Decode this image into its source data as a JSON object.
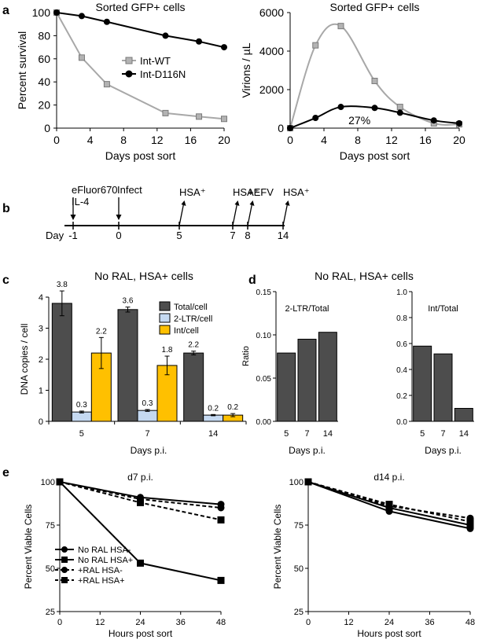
{
  "panel_letters": {
    "a": "a",
    "b": "b",
    "c": "c",
    "d": "d",
    "e": "e"
  },
  "chart_data": [
    {
      "id": "a-left",
      "type": "line",
      "title": "Sorted GFP+ cells",
      "xlabel": "Days post sort",
      "ylabel": "Percent survival",
      "xlim": [
        0,
        20
      ],
      "ylim": [
        0,
        100
      ],
      "xticks": [
        0,
        4,
        8,
        12,
        16,
        20
      ],
      "yticks": [
        0,
        20,
        40,
        60,
        80,
        100
      ],
      "series": [
        {
          "name": "Int-WT",
          "color": "#a8a8a8",
          "marker": "square",
          "x": [
            0,
            3,
            6,
            13,
            17,
            20
          ],
          "y": [
            100,
            61,
            38,
            13,
            10,
            8
          ]
        },
        {
          "name": "Int-D116N",
          "color": "#000000",
          "marker": "circle",
          "x": [
            0,
            3,
            6,
            13,
            17,
            20
          ],
          "y": [
            100,
            97,
            92,
            80,
            75,
            70
          ]
        }
      ]
    },
    {
      "id": "a-right",
      "type": "line",
      "title": "Sorted GFP+ cells",
      "xlabel": "Days post sort",
      "ylabel": "Virions / µL",
      "xlim": [
        0,
        20
      ],
      "ylim": [
        0,
        6000
      ],
      "xticks": [
        0,
        4,
        8,
        12,
        16,
        20
      ],
      "yticks": [
        0,
        2000,
        4000,
        6000
      ],
      "annotation": "27%",
      "series": [
        {
          "name": "Int-WT",
          "color": "#a8a8a8",
          "marker": "square",
          "x": [
            0,
            3,
            6,
            10,
            13,
            17,
            20
          ],
          "y": [
            0,
            4300,
            5300,
            2450,
            1100,
            250,
            200
          ]
        },
        {
          "name": "Int-D116N",
          "color": "#000000",
          "marker": "circle",
          "x": [
            0,
            3,
            6,
            10,
            13,
            17,
            20
          ],
          "y": [
            0,
            530,
            1100,
            1050,
            800,
            400,
            250
          ]
        }
      ]
    },
    {
      "id": "c",
      "type": "bar",
      "title": "No RAL, HSA+ cells",
      "xlabel": "Days p.i.",
      "ylabel": "DNA copies / cell",
      "categories": [
        "5",
        "7",
        "14"
      ],
      "ylim": [
        0,
        4
      ],
      "yticks": [
        0,
        1,
        2,
        3,
        4
      ],
      "series": [
        {
          "name": "Total/cell",
          "color": "#4d4d4d",
          "values": [
            3.8,
            3.6,
            2.2
          ],
          "errors": [
            0.4,
            0.08,
            0.06
          ],
          "labels": [
            "3.8",
            "3.6",
            "2.2"
          ]
        },
        {
          "name": "2-LTR/cell",
          "color": "#c5d9f1",
          "values": [
            0.3,
            0.35,
            0.2
          ],
          "errors": [
            0.03,
            0.03,
            0.02
          ],
          "labels": [
            "0.3",
            "0.3",
            "0.2"
          ]
        },
        {
          "name": "Int/cell",
          "color": "#ffc000",
          "values": [
            2.2,
            1.8,
            0.2
          ],
          "errors": [
            0.5,
            0.3,
            0.05
          ],
          "labels": [
            "2.2",
            "1.8",
            "0.2"
          ]
        }
      ]
    },
    {
      "id": "d-left",
      "type": "bar",
      "title": "No RAL, HSA+ cells",
      "subtitle": "2-LTR/Total",
      "xlabel": "Days p.i.",
      "ylabel": "Ratio",
      "categories": [
        "5",
        "7",
        "14"
      ],
      "ylim": [
        0,
        0.15
      ],
      "yticks": [
        0,
        0.05,
        0.1,
        0.15
      ],
      "ytick_labels": [
        "0.00",
        "0.05",
        "0.10",
        "0.15"
      ],
      "series": [
        {
          "name": "2-LTR/Total",
          "color": "#4d4d4d",
          "values": [
            0.079,
            0.095,
            0.103
          ]
        }
      ]
    },
    {
      "id": "d-right",
      "type": "bar",
      "subtitle": "Int/Total",
      "xlabel": "Days p.i.",
      "categories": [
        "5",
        "7",
        "14"
      ],
      "ylim": [
        0,
        1
      ],
      "yticks": [
        0,
        0.2,
        0.4,
        0.6,
        0.8,
        1.0
      ],
      "ytick_labels": [
        "0.0",
        "0.2",
        "0.4",
        "0.6",
        "0.8",
        "1.0"
      ],
      "series": [
        {
          "name": "Int/Total",
          "color": "#4d4d4d",
          "values": [
            0.58,
            0.52,
            0.1
          ]
        }
      ]
    },
    {
      "id": "e-left",
      "type": "line",
      "title": "d7 p.i.",
      "xlabel": "Hours post sort",
      "ylabel": "Percent Viable Cells",
      "xlim": [
        0,
        48
      ],
      "ylim": [
        25,
        100
      ],
      "xticks": [
        0,
        12,
        24,
        36,
        48
      ],
      "yticks": [
        25,
        50,
        75,
        100
      ],
      "series": [
        {
          "name": "No RAL HSA-",
          "dashed": false,
          "marker": "circle",
          "x": [
            0,
            24,
            48
          ],
          "y": [
            100,
            91,
            87
          ]
        },
        {
          "name": "No RAL HSA+",
          "dashed": false,
          "marker": "square",
          "x": [
            0,
            24,
            48
          ],
          "y": [
            100,
            53,
            43
          ]
        },
        {
          "name": "+RAL  HSA-",
          "dashed": true,
          "marker": "circle",
          "x": [
            0,
            24,
            48
          ],
          "y": [
            100,
            90,
            85
          ]
        },
        {
          "name": "+RAL  HSA+",
          "dashed": true,
          "marker": "square",
          "x": [
            0,
            24,
            48
          ],
          "y": [
            100,
            88,
            78
          ]
        }
      ]
    },
    {
      "id": "e-right",
      "type": "line",
      "title": "d14 p.i.",
      "xlabel": "Hours post sort",
      "ylabel": "Percent Viable Cells",
      "xlim": [
        0,
        48
      ],
      "ylim": [
        25,
        100
      ],
      "xticks": [
        0,
        12,
        24,
        36,
        48
      ],
      "yticks": [
        25,
        50,
        75,
        100
      ],
      "series": [
        {
          "name": "No RAL HSA-",
          "dashed": false,
          "marker": "circle",
          "x": [
            0,
            24,
            48
          ],
          "y": [
            100,
            83,
            73
          ]
        },
        {
          "name": "No RAL HSA+",
          "dashed": false,
          "marker": "square",
          "x": [
            0,
            24,
            48
          ],
          "y": [
            100,
            85,
            75
          ]
        },
        {
          "name": "+RAL  HSA-",
          "dashed": true,
          "marker": "circle",
          "x": [
            0,
            24,
            48
          ],
          "y": [
            100,
            86,
            79
          ]
        },
        {
          "name": "+RAL  HSA+",
          "dashed": true,
          "marker": "square",
          "x": [
            0,
            24,
            48
          ],
          "y": [
            100,
            87,
            77
          ]
        }
      ]
    }
  ],
  "timeline": {
    "axis_label": "Day",
    "days": [
      {
        "day": "-1",
        "label": "eFluor670\nIL-4",
        "arrow": "down"
      },
      {
        "day": "0",
        "label": "Infect",
        "arrow": "down"
      },
      {
        "day": "5",
        "label": "HSA⁺",
        "arrow": "up"
      },
      {
        "day": "7",
        "label": "HSA⁺",
        "arrow": "up"
      },
      {
        "day": "8",
        "label": "+EFV",
        "arrow": "up"
      },
      {
        "day": "14",
        "label": "HSA⁺",
        "arrow": "up"
      }
    ]
  }
}
